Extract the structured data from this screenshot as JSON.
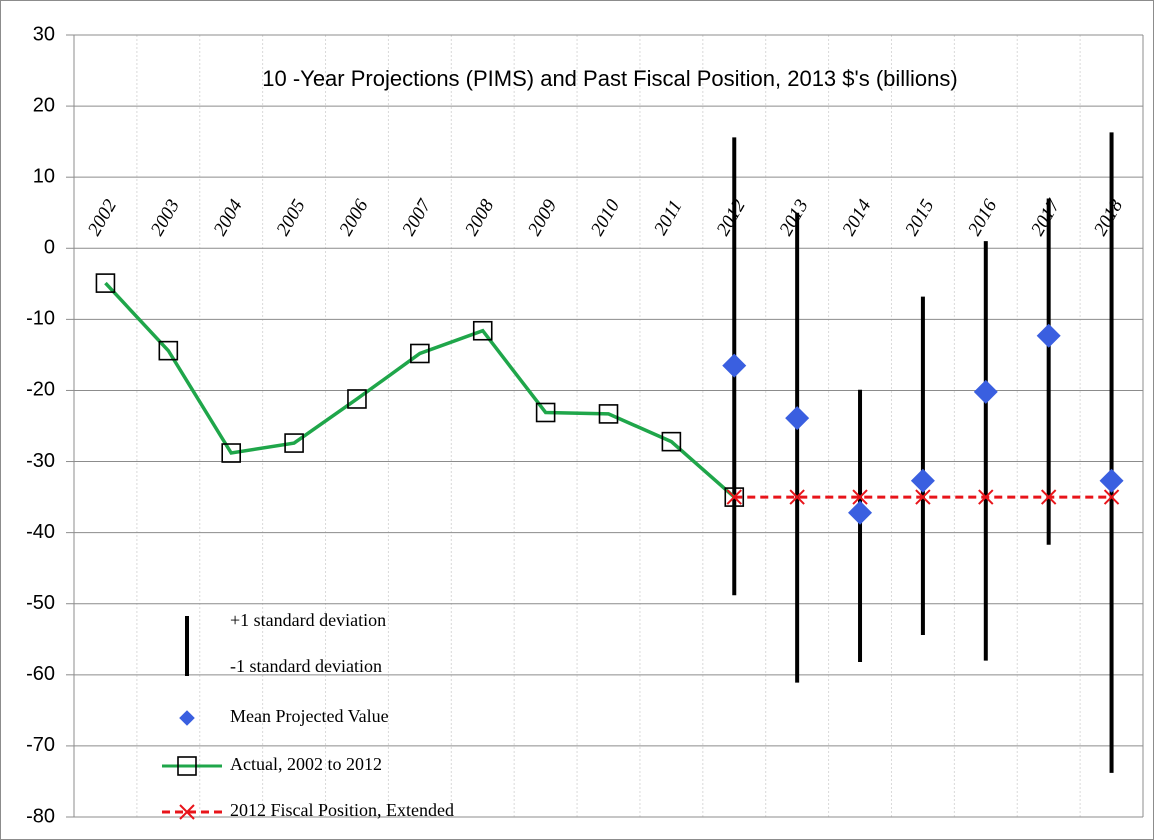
{
  "chart_data": {
    "type": "line",
    "title": "10 -Year Projections (PIMS) and Past Fiscal Position, 2013 $'s (billions)",
    "categories": [
      "2002",
      "2003",
      "2004",
      "2005",
      "2006",
      "2007",
      "2008",
      "2009",
      "2010",
      "2011",
      "2012",
      "2013",
      "2014",
      "2015",
      "2016",
      "2017",
      "2018"
    ],
    "ylim": [
      -80,
      30
    ],
    "yticks": [
      -80,
      -70,
      -60,
      -50,
      -40,
      -30,
      -20,
      -10,
      0,
      10,
      20,
      30
    ],
    "grid": true,
    "legend": "lower-left",
    "error_bars": {
      "labels": [
        "+1 standard deviation",
        "-1 standard deviation"
      ],
      "color": "#000000",
      "high": [
        null,
        null,
        null,
        null,
        null,
        null,
        null,
        null,
        null,
        null,
        15.6,
        5,
        -19.9,
        -6.8,
        1,
        7,
        16.3
      ],
      "low": [
        null,
        null,
        null,
        null,
        null,
        null,
        null,
        null,
        null,
        null,
        -48.8,
        -61.1,
        -58.2,
        -54.4,
        -58,
        -41.7,
        -73.8
      ]
    },
    "series": [
      {
        "name": "Mean Projected Value",
        "color": "#3a5fe0",
        "marker": "diamond",
        "line": "none",
        "values": [
          null,
          null,
          null,
          null,
          null,
          null,
          null,
          null,
          null,
          null,
          -16.5,
          -23.9,
          -37.2,
          -32.7,
          -20.2,
          -12.3,
          -32.7
        ]
      },
      {
        "name": "Actual, 2002 to 2012",
        "color": "#1fa64a",
        "marker": "square",
        "line": "solid",
        "values": [
          -4.9,
          -14.4,
          -28.8,
          -27.4,
          -21.2,
          -14.8,
          -11.6,
          -23.1,
          -23.3,
          -27.2,
          -35,
          null,
          null,
          null,
          null,
          null,
          null
        ]
      },
      {
        "name": "2012 Fiscal Position, Extended",
        "color": "#e8141a",
        "marker": "x",
        "line": "dashed",
        "values": [
          null,
          null,
          null,
          null,
          null,
          null,
          null,
          null,
          null,
          null,
          -35,
          -35,
          -35,
          -35,
          -35,
          -35,
          -35
        ]
      }
    ]
  }
}
